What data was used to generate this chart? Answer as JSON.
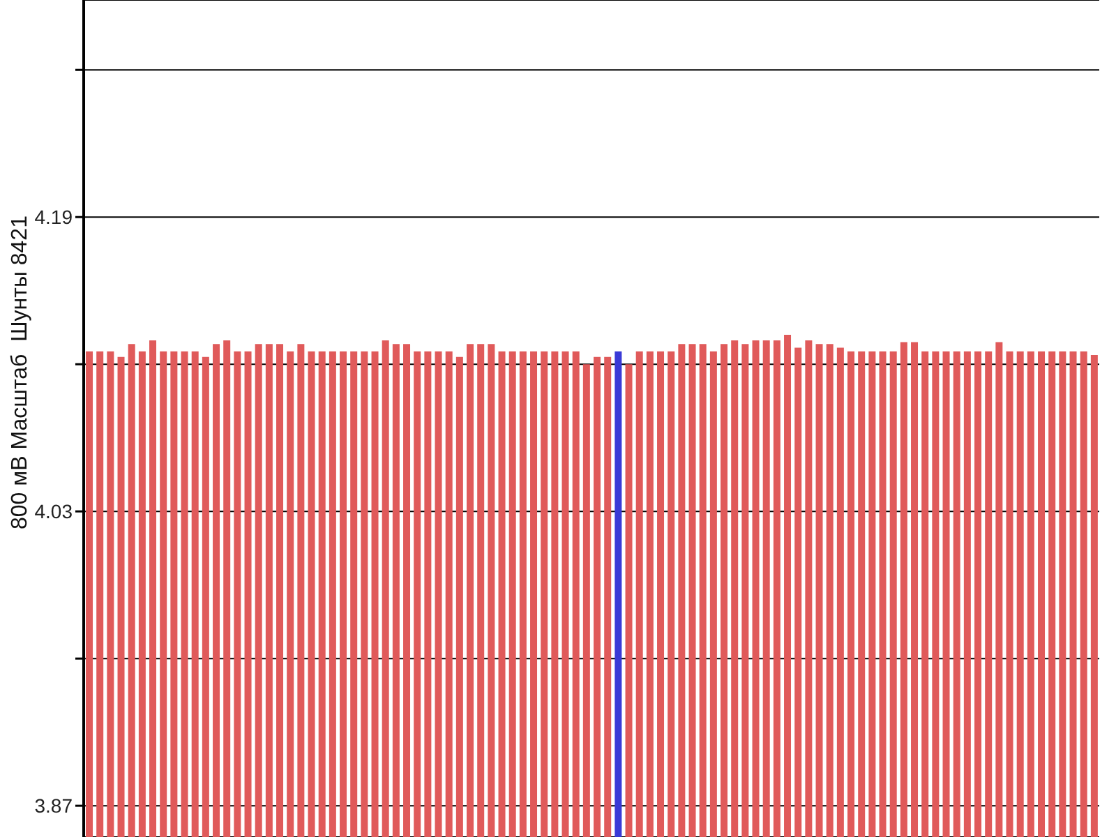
{
  "chart_data": {
    "type": "bar",
    "ylabel": "800 мВ Масштаб  Шунты 8421",
    "categories": [
      null,
      null,
      null,
      null,
      null,
      null,
      null,
      null,
      null,
      null,
      null,
      null,
      null,
      null,
      null,
      null,
      null,
      null,
      null,
      null,
      null,
      null,
      null,
      null,
      null,
      null,
      null,
      null,
      null,
      null,
      null,
      null,
      null,
      null,
      null,
      null,
      null,
      null,
      null,
      null,
      null,
      null,
      null,
      null,
      null,
      null,
      null,
      null,
      null,
      null,
      null,
      null,
      null,
      null,
      null,
      null,
      null,
      null,
      null,
      null,
      null,
      null,
      null,
      null,
      null,
      null,
      null,
      null,
      null,
      null,
      null,
      null,
      null,
      null,
      null,
      null,
      null,
      null,
      null,
      null,
      null,
      null,
      null,
      null,
      null,
      null,
      null,
      null,
      null,
      null,
      null,
      null,
      null,
      null,
      null,
      null
    ],
    "values": [
      4.117,
      4.117,
      4.117,
      4.114,
      4.121,
      4.117,
      4.123,
      4.117,
      4.117,
      4.117,
      4.117,
      4.114,
      4.121,
      4.123,
      4.117,
      4.117,
      4.121,
      4.121,
      4.121,
      4.117,
      4.121,
      4.117,
      4.117,
      4.117,
      4.117,
      4.117,
      4.117,
      4.117,
      4.123,
      4.121,
      4.121,
      4.117,
      4.117,
      4.117,
      4.117,
      4.114,
      4.121,
      4.121,
      4.121,
      4.117,
      4.117,
      4.117,
      4.117,
      4.117,
      4.117,
      4.117,
      4.117,
      4.11,
      4.114,
      4.114,
      4.117,
      4.11,
      4.117,
      4.117,
      4.117,
      4.117,
      4.121,
      4.121,
      4.121,
      4.117,
      4.121,
      4.123,
      4.121,
      4.123,
      4.123,
      4.123,
      4.126,
      4.119,
      4.123,
      4.121,
      4.121,
      4.119,
      4.117,
      4.117,
      4.117,
      4.117,
      4.117,
      4.122,
      4.122,
      4.117,
      4.117,
      4.117,
      4.117,
      4.117,
      4.117,
      4.117,
      4.122,
      4.117,
      4.117,
      4.117,
      4.117,
      4.117,
      4.117,
      4.117,
      4.117,
      4.115
    ],
    "colors": [
      "#e05a5a",
      "#e05a5a",
      "#e05a5a",
      "#e05a5a",
      "#e05a5a",
      "#e05a5a",
      "#e05a5a",
      "#e05a5a",
      "#e05a5a",
      "#e05a5a",
      "#e05a5a",
      "#e05a5a",
      "#e05a5a",
      "#e05a5a",
      "#e05a5a",
      "#e05a5a",
      "#e05a5a",
      "#e05a5a",
      "#e05a5a",
      "#e05a5a",
      "#e05a5a",
      "#e05a5a",
      "#e05a5a",
      "#e05a5a",
      "#e05a5a",
      "#e05a5a",
      "#e05a5a",
      "#e05a5a",
      "#e05a5a",
      "#e05a5a",
      "#e05a5a",
      "#e05a5a",
      "#e05a5a",
      "#e05a5a",
      "#e05a5a",
      "#e05a5a",
      "#e05a5a",
      "#e05a5a",
      "#e05a5a",
      "#e05a5a",
      "#e05a5a",
      "#e05a5a",
      "#e05a5a",
      "#e05a5a",
      "#e05a5a",
      "#e05a5a",
      "#e05a5a",
      "#e05a5a",
      "#e05a5a",
      "#e05a5a",
      "#3a3ad6",
      "#e05a5a",
      "#e05a5a",
      "#e05a5a",
      "#e05a5a",
      "#e05a5a",
      "#e05a5a",
      "#e05a5a",
      "#e05a5a",
      "#e05a5a",
      "#e05a5a",
      "#e05a5a",
      "#e05a5a",
      "#e05a5a",
      "#e05a5a",
      "#e05a5a",
      "#e05a5a",
      "#e05a5a",
      "#e05a5a",
      "#e05a5a",
      "#e05a5a",
      "#e05a5a",
      "#e05a5a",
      "#e05a5a",
      "#e05a5a",
      "#e05a5a",
      "#e05a5a",
      "#e05a5a",
      "#e05a5a",
      "#e05a5a",
      "#e05a5a",
      "#e05a5a",
      "#e05a5a",
      "#e05a5a",
      "#e05a5a",
      "#e05a5a",
      "#e05a5a",
      "#e05a5a",
      "#e05a5a",
      "#e05a5a",
      "#e05a5a",
      "#e05a5a",
      "#e05a5a",
      "#e05a5a",
      "#e05a5a",
      "#e05a5a"
    ],
    "ylim": [
      3.853,
      4.308
    ],
    "yticks": [
      3.87,
      {
        "value": 3.95,
        "label": null
      },
      4.03,
      {
        "value": 4.11,
        "label": null
      },
      4.19,
      {
        "value": 4.27,
        "label": null
      }
    ],
    "grid": "y",
    "tick_labels": "y"
  }
}
